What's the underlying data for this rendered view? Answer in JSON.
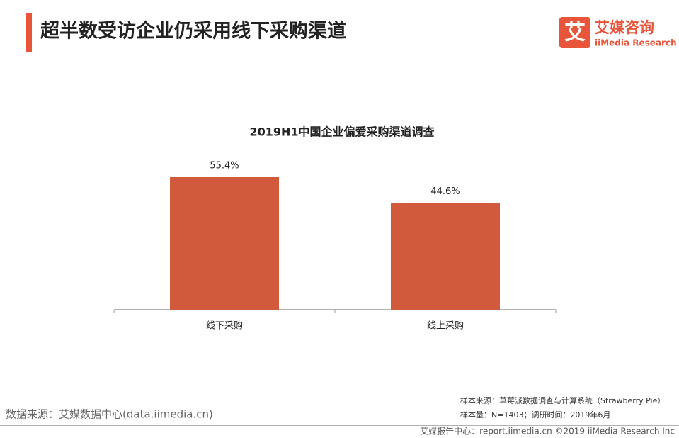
{
  "header": {
    "title": "超半数受访企业仍采用线下采购渠道",
    "logo_mark": "艾",
    "logo_name": "艾媒咨询",
    "logo_sub": "iiMedia Research"
  },
  "chart_data": {
    "type": "bar",
    "title": "2019H1中国企业偏爱采购渠道调查",
    "categories": [
      "线下采购",
      "线上采购"
    ],
    "values": [
      55.4,
      44.6
    ],
    "value_labels": [
      "55.4%",
      "44.6%"
    ],
    "color": "#d05a3b",
    "grid": false
  },
  "footer": {
    "source": "数据来源：艾媒数据中心(data.iimedia.cn)",
    "sample_source": "样本来源：草莓派数据调查与计算系统（Strawberry Pie）",
    "sample_size": "样本量：N=1403；调研时间：2019年6月",
    "copyright": "艾媒报告中心：report.iimedia.cn  ©2019  iiMedia Research Inc"
  }
}
